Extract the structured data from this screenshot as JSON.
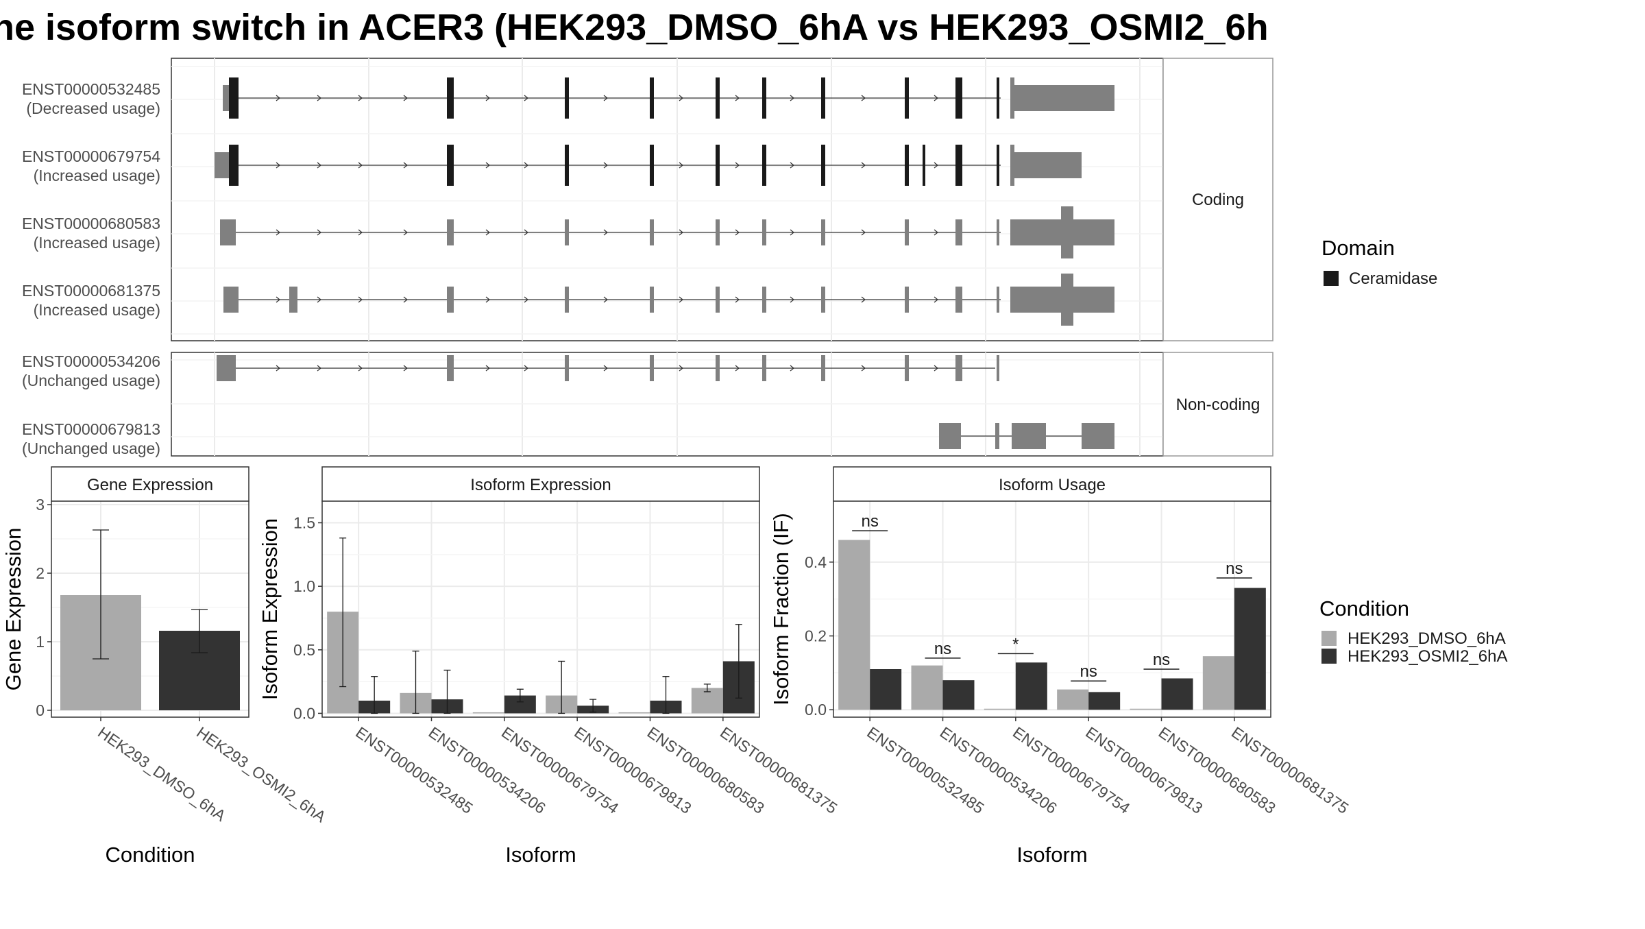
{
  "title": "ne isoform switch in ACER3 (HEK293_DMSO_6hA vs HEK293_OSMI2_6h",
  "colors": {
    "dmso": "#aaaaaa",
    "osmi": "#333333",
    "domain": "#1a1a1a",
    "exon": "#808080",
    "grid": "#ebebeb",
    "strip_fill": "#ffffff",
    "border": "#555555"
  },
  "transcripts": {
    "coding_strip": "Coding",
    "noncoding_strip": "Non-coding",
    "coding": [
      {
        "id": "ENST00000532485",
        "status": "(Decreased usage)"
      },
      {
        "id": "ENST00000679754",
        "status": "(Increased usage)"
      },
      {
        "id": "ENST00000680583",
        "status": "(Increased usage)"
      },
      {
        "id": "ENST00000681375",
        "status": "(Increased usage)"
      }
    ],
    "noncoding": [
      {
        "id": "ENST00000534206",
        "status": "(Unchanged usage)"
      },
      {
        "id": "ENST00000679813",
        "status": "(Unchanged usage)"
      }
    ]
  },
  "legend_domain": {
    "title": "Domain",
    "items": [
      {
        "label": "Ceramidase"
      }
    ]
  },
  "legend_condition": {
    "title": "Condition",
    "items": [
      {
        "label": "HEK293_DMSO_6hA"
      },
      {
        "label": "HEK293_OSMI2_6hA"
      }
    ]
  },
  "chart_data": [
    {
      "type": "bar",
      "title": "Gene Expression",
      "xlabel": "Condition",
      "ylabel": "Gene Expression",
      "categories": [
        "HEK293_DMSO_6hA",
        "HEK293_OSMI2_6hA"
      ],
      "values": [
        1.68,
        1.16
      ],
      "error_low": [
        0.75,
        0.84
      ],
      "error_high": [
        2.63,
        1.47
      ],
      "ylim": [
        -0.1,
        3.05
      ],
      "yticks": [
        0,
        1,
        2,
        3
      ],
      "ytick_labels": [
        "0",
        "1",
        "2",
        "3"
      ]
    },
    {
      "type": "bar",
      "title": "Isoform Expression",
      "xlabel": "Isoform",
      "ylabel": "Isoform Expression",
      "categories": [
        "ENST00000532485",
        "ENST00000534206",
        "ENST00000679754",
        "ENST00000679813",
        "ENST00000680583",
        "ENST00000681375"
      ],
      "series": [
        {
          "name": "HEK293_DMSO_6hA",
          "values": [
            0.8,
            0.16,
            0.0,
            0.14,
            0.0,
            0.2
          ],
          "error_low": [
            0.21,
            0.0,
            0.0,
            0.0,
            0.0,
            0.17
          ],
          "error_high": [
            1.38,
            0.49,
            0.0,
            0.41,
            0.0,
            0.23
          ]
        },
        {
          "name": "HEK293_OSMI2_6hA",
          "values": [
            0.1,
            0.11,
            0.14,
            0.06,
            0.1,
            0.41
          ],
          "error_low": [
            0.0,
            0.0,
            0.09,
            0.01,
            0.0,
            0.12
          ],
          "error_high": [
            0.29,
            0.34,
            0.19,
            0.11,
            0.29,
            0.7
          ]
        }
      ],
      "ylim": [
        -0.03,
        1.67
      ],
      "yticks": [
        0,
        0.5,
        1.0,
        1.5
      ],
      "ytick_labels": [
        "0.0",
        "0.5",
        "1.0",
        "1.5"
      ]
    },
    {
      "type": "bar",
      "title": "Isoform Usage",
      "xlabel": "Isoform",
      "ylabel": "Isoform Fraction (IF)",
      "categories": [
        "ENST00000532485",
        "ENST00000534206",
        "ENST00000679754",
        "ENST00000679813",
        "ENST00000680583",
        "ENST00000681375"
      ],
      "series": [
        {
          "name": "HEK293_DMSO_6hA",
          "values": [
            0.46,
            0.12,
            0.0,
            0.055,
            0.0,
            0.145
          ]
        },
        {
          "name": "HEK293_OSMI2_6hA",
          "values": [
            0.11,
            0.08,
            0.128,
            0.048,
            0.085,
            0.33
          ]
        }
      ],
      "significance": [
        "ns",
        "ns",
        "*",
        "ns",
        "ns",
        "ns"
      ],
      "sig_level": [
        0.485,
        0.14,
        0.152,
        0.078,
        0.11,
        0.357
      ],
      "ylim": [
        -0.02,
        0.565
      ],
      "yticks": [
        0,
        0.2,
        0.4
      ],
      "ytick_labels": [
        "0.0",
        "0.2",
        "0.4"
      ]
    }
  ]
}
